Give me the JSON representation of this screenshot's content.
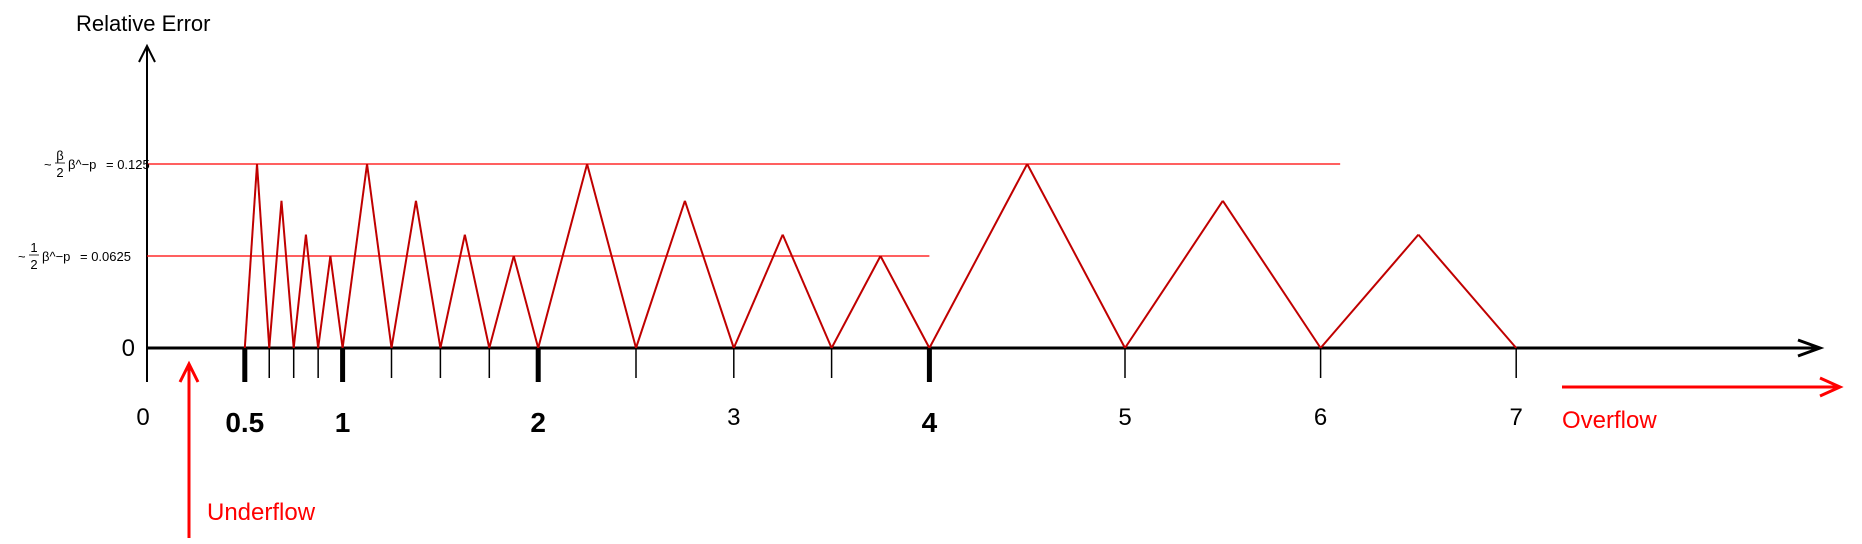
{
  "chart_data": {
    "type": "line",
    "ylabel": "Relative Error",
    "y_zero_label": "0",
    "x_major_ticks": [
      "0.5",
      "1",
      "2",
      "4"
    ],
    "x_tick_labels": [
      "0",
      "0.5",
      "1",
      "2",
      "3",
      "4",
      "5",
      "6",
      "7"
    ],
    "reference_levels": [
      {
        "value": 0.125,
        "label_prefix": "~",
        "label_math": "β/2 β^−p",
        "label_value": "= 0.125",
        "x_end": 6.1
      },
      {
        "value": 0.0625,
        "label_prefix": "~",
        "label_math": "1/2 β^−p",
        "label_value": "= 0.0625",
        "x_end": 4
      }
    ],
    "error_curve": [
      [
        0.5,
        0
      ],
      [
        0.5625,
        0.125
      ],
      [
        0.625,
        0
      ],
      [
        0.6875,
        0.1
      ],
      [
        0.75,
        0
      ],
      [
        0.8125,
        0.077
      ],
      [
        0.875,
        0
      ],
      [
        0.9375,
        0.0625
      ],
      [
        1,
        0
      ],
      [
        1.125,
        0.125
      ],
      [
        1.25,
        0
      ],
      [
        1.375,
        0.1
      ],
      [
        1.5,
        0
      ],
      [
        1.625,
        0.077
      ],
      [
        1.75,
        0
      ],
      [
        1.875,
        0.0625
      ],
      [
        2,
        0
      ],
      [
        2.25,
        0.125
      ],
      [
        2.5,
        0
      ],
      [
        2.75,
        0.1
      ],
      [
        3,
        0
      ],
      [
        3.25,
        0.077
      ],
      [
        3.5,
        0
      ],
      [
        3.75,
        0.0625
      ],
      [
        4,
        0
      ],
      [
        4.5,
        0.125
      ],
      [
        5,
        0
      ],
      [
        5.5,
        0.1
      ],
      [
        6,
        0
      ],
      [
        6.5,
        0.077
      ],
      [
        7,
        0
      ]
    ],
    "minor_ticks": [
      0.625,
      0.75,
      0.875,
      1.25,
      1.5,
      1.75,
      2.5,
      3,
      3.5,
      5,
      6,
      7
    ],
    "x_range": [
      0,
      8.8
    ],
    "y_range": [
      0,
      0.19
    ]
  },
  "annotations": {
    "underflow": {
      "label": "Underflow",
      "color": "#ff0000"
    },
    "overflow": {
      "label": "Overflow",
      "color": "#ff0000"
    }
  },
  "colors": {
    "curve": "#c00000",
    "reference": "#ff0000",
    "axis": "#000000"
  }
}
